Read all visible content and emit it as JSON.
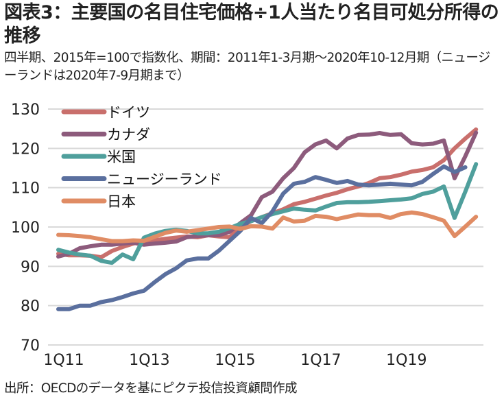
{
  "title": "図表3：主要国の名目住宅価格÷1人当たり名目可処分所得の推移",
  "subtitle": "四半期、2015年=100で指数化、期間：2011年1-3月期～2020年10-12月期（ニュージーランドは2020年7-9月期まで）",
  "source": "出所：OECDのデータを基にピクテ投信投資顧問作成",
  "chart_data": {
    "type": "line",
    "title": "主要国の名目住宅価格÷1人当たり名目可処分所得の推移",
    "xlabel": "",
    "ylabel": "",
    "ylim": [
      70,
      130
    ],
    "yticks": [
      70,
      80,
      90,
      100,
      110,
      120,
      130
    ],
    "xtick_labels": [
      "1Q11",
      "1Q13",
      "1Q15",
      "1Q17",
      "1Q19"
    ],
    "xtick_indices": [
      0,
      8,
      16,
      24,
      32
    ],
    "grid": true,
    "legend_position": "top-left",
    "x": [
      "1Q11",
      "2Q11",
      "3Q11",
      "4Q11",
      "1Q12",
      "2Q12",
      "3Q12",
      "4Q12",
      "1Q13",
      "2Q13",
      "3Q13",
      "4Q13",
      "1Q14",
      "2Q14",
      "3Q14",
      "4Q14",
      "1Q15",
      "2Q15",
      "3Q15",
      "4Q15",
      "1Q16",
      "2Q16",
      "3Q16",
      "4Q16",
      "1Q17",
      "2Q17",
      "3Q17",
      "4Q17",
      "1Q18",
      "2Q18",
      "3Q18",
      "4Q18",
      "1Q19",
      "2Q19",
      "3Q19",
      "4Q19",
      "1Q20",
      "2Q20",
      "3Q20",
      "4Q20"
    ],
    "series": [
      {
        "name": "ドイツ",
        "color": "#c96f6c",
        "values": [
          93.2,
          92.8,
          92.8,
          92.7,
          92.3,
          93.9,
          94.9,
          95.8,
          96.3,
          96.6,
          97.0,
          97.3,
          97.6,
          97.4,
          97.9,
          97.6,
          97.4,
          100.0,
          101.5,
          102.5,
          103.5,
          104.5,
          105.8,
          106.4,
          107.2,
          108.0,
          108.7,
          109.6,
          110.3,
          111.2,
          112.4,
          112.7,
          113.3,
          114.1,
          114.5,
          115.2,
          117.0,
          120.0,
          122.5,
          124.8
        ]
      },
      {
        "name": "カナダ",
        "color": "#8d5b7c",
        "values": [
          92.5,
          93.2,
          94.6,
          95.1,
          95.5,
          95.5,
          95.8,
          96.0,
          95.5,
          95.8,
          96.0,
          96.3,
          97.4,
          97.7,
          97.9,
          97.9,
          98.8,
          101.0,
          103.0,
          107.6,
          109.0,
          112.4,
          115.0,
          119.0,
          121.0,
          122.0,
          120.0,
          122.5,
          123.4,
          123.5,
          123.9,
          123.4,
          123.6,
          121.3,
          121.0,
          121.2,
          122.0,
          112.4,
          118.0,
          124.0
        ]
      },
      {
        "name": "米国",
        "color": "#4f9f9c",
        "values": [
          94.2,
          93.5,
          93.0,
          92.7,
          91.4,
          90.9,
          93.0,
          91.8,
          97.3,
          98.3,
          99.0,
          99.3,
          99.0,
          98.4,
          98.4,
          98.8,
          99.7,
          100.8,
          101.5,
          102.5,
          103.3,
          104.0,
          104.7,
          104.4,
          104.2,
          105.2,
          106.1,
          106.3,
          106.3,
          106.4,
          106.6,
          106.8,
          107.0,
          107.3,
          108.4,
          109.0,
          110.3,
          102.3,
          109.0,
          116.0
        ]
      },
      {
        "name": "ニュージーランド",
        "color": "#5a6f9e",
        "values": [
          79.1,
          79.1,
          80.0,
          80.0,
          80.9,
          81.4,
          82.2,
          83.1,
          83.8,
          86.0,
          88.0,
          89.5,
          91.5,
          92.0,
          92.0,
          94.0,
          96.5,
          99.0,
          102.3,
          101.0,
          104.0,
          108.5,
          111.0,
          111.5,
          112.7,
          112.0,
          111.2,
          111.7,
          110.8,
          110.6,
          110.8,
          111.0,
          110.8,
          110.6,
          111.5,
          113.5,
          115.4,
          114.0,
          115.2
        ]
      },
      {
        "name": "日本",
        "color": "#e08c64",
        "values": [
          98.0,
          97.9,
          97.7,
          97.4,
          96.9,
          96.4,
          96.4,
          96.6,
          96.5,
          97.5,
          98.5,
          99.1,
          98.8,
          99.2,
          99.6,
          100.0,
          100.1,
          99.5,
          100.2,
          100.1,
          99.6,
          102.4,
          101.4,
          101.6,
          102.8,
          102.6,
          102.0,
          102.6,
          103.2,
          103.0,
          103.0,
          102.3,
          103.3,
          103.7,
          103.3,
          102.5,
          101.6,
          97.7,
          100.1,
          102.6
        ]
      }
    ]
  }
}
